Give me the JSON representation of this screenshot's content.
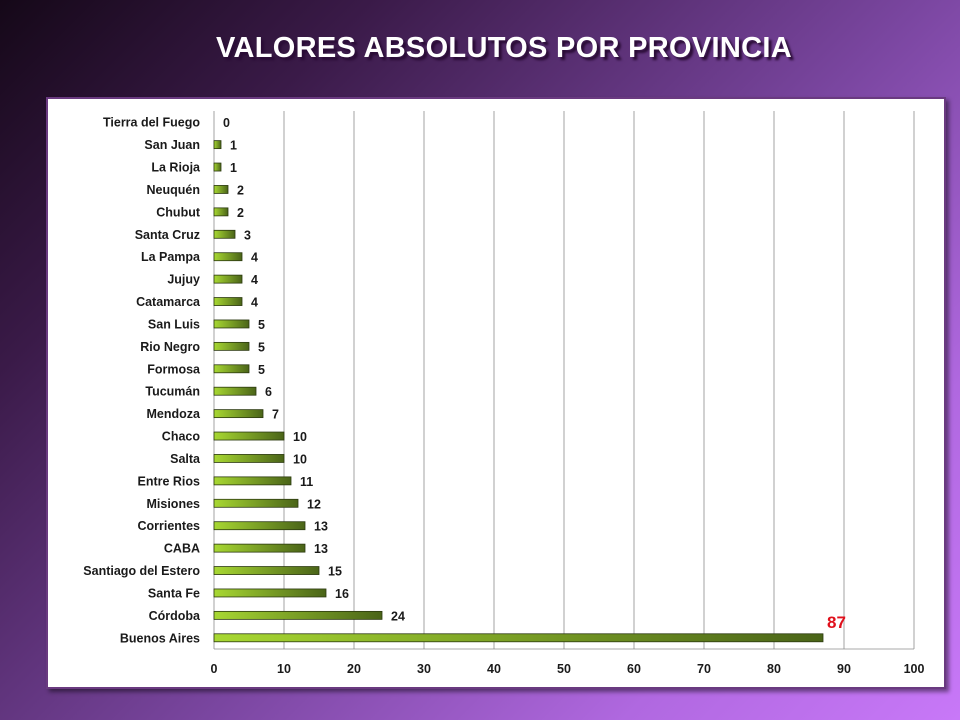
{
  "title": "VALORES ABSOLUTOS POR PROVINCIA",
  "colors": {
    "bar_light": "#a8d832",
    "bar_dark": "#4a6418",
    "highlight_label": "#e0101c"
  },
  "chart_data": {
    "type": "bar",
    "orientation": "horizontal",
    "title": "VALORES ABSOLUTOS POR PROVINCIA",
    "xlabel": "",
    "ylabel": "",
    "xlim": [
      0,
      100
    ],
    "x_ticks": [
      0,
      10,
      20,
      30,
      40,
      50,
      60,
      70,
      80,
      90,
      100
    ],
    "grid": true,
    "legend": "none",
    "categories": [
      "Tierra del Fuego",
      "San Juan",
      "La Rioja",
      "Neuquén",
      "Chubut",
      "Santa Cruz",
      "La Pampa",
      "Jujuy",
      "Catamarca",
      "San Luis",
      "Rio Negro",
      "Formosa",
      "Tucumán",
      "Mendoza",
      "Chaco",
      "Salta",
      "Entre Rios",
      "Misiones",
      "Corrientes",
      "CABA",
      "Santiago del Estero",
      "Santa Fe",
      "Córdoba",
      "Buenos Aires"
    ],
    "values": [
      0,
      1,
      1,
      2,
      2,
      3,
      4,
      4,
      4,
      5,
      5,
      5,
      6,
      7,
      10,
      10,
      11,
      12,
      13,
      13,
      15,
      16,
      24,
      87
    ],
    "highlight_category": "Buenos Aires"
  }
}
